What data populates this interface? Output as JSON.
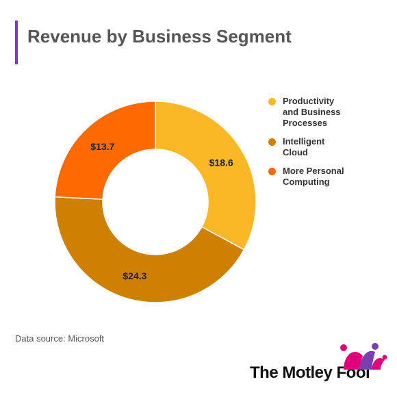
{
  "title": "Revenue by Business Segment",
  "source": "Data source: Microsoft",
  "brand": {
    "name": "The Motley Fool"
  },
  "colors": {
    "accent_bar": "#7b3fb2"
  },
  "chart_data": {
    "type": "pie",
    "variant": "donut",
    "categories": [
      "Productivity and Business Processes",
      "Intelligent Cloud",
      "More Personal Computing"
    ],
    "values": [
      18.6,
      24.3,
      13.7
    ],
    "labels": [
      "$18.6",
      "$24.3",
      "$13.7"
    ],
    "colors": [
      "#fbb726",
      "#cd8002",
      "#fe6a02"
    ],
    "legend_position": "right",
    "start": "top, clockwise"
  }
}
